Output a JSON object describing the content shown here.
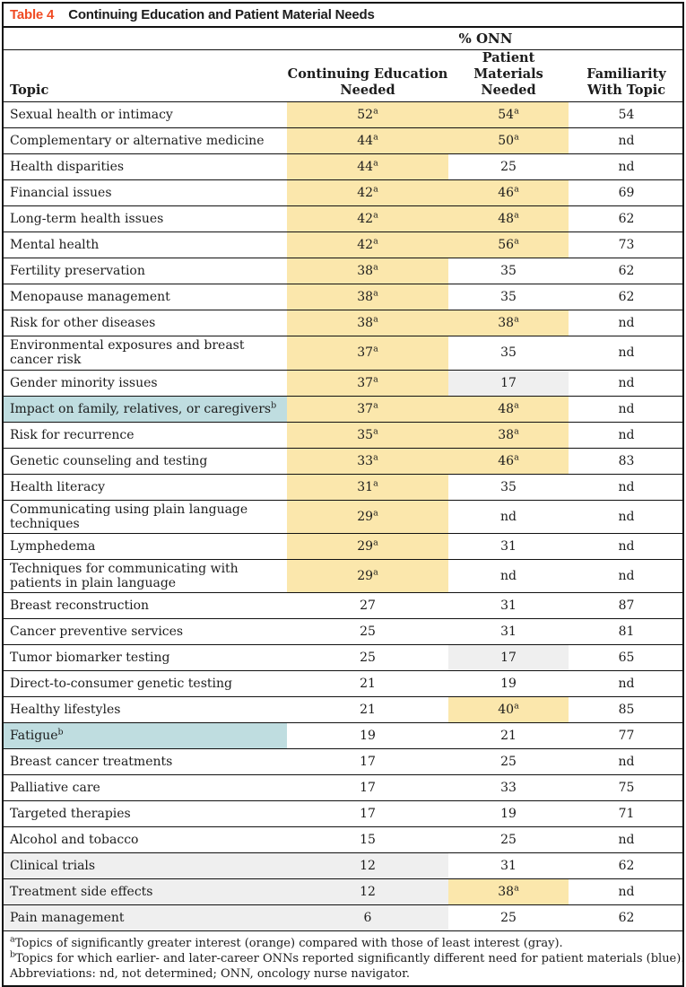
{
  "table": {
    "label": "Table 4",
    "title": "Continuing Education and Patient Material Needs",
    "group_header": "% ONN",
    "columns": [
      "Topic",
      "Continuing Education Needed",
      "Patient Materials Needed",
      "Familiarity With Topic"
    ],
    "colors": {
      "highlight_orange": "#fbe7ac",
      "highlight_gray": "#efefef",
      "highlight_blue": "#bfdde0",
      "table_label_red": "#f04b23",
      "border_black": "#111111"
    },
    "rows": [
      {
        "topic": "Sexual health or intimacy",
        "tsup": "",
        "tbg": "",
        "ce": "52",
        "cesup": "a",
        "cebg": "o",
        "pm": "54",
        "pmsup": "a",
        "pmbg": "o",
        "fam": "54"
      },
      {
        "topic": "Complementary or alternative medicine",
        "tsup": "",
        "tbg": "",
        "ce": "44",
        "cesup": "a",
        "cebg": "o",
        "pm": "50",
        "pmsup": "a",
        "pmbg": "o",
        "fam": "nd"
      },
      {
        "topic": "Health disparities",
        "tsup": "",
        "tbg": "",
        "ce": "44",
        "cesup": "a",
        "cebg": "o",
        "pm": "25",
        "pmsup": "",
        "pmbg": "",
        "fam": "nd"
      },
      {
        "topic": "Financial issues",
        "tsup": "",
        "tbg": "",
        "ce": "42",
        "cesup": "a",
        "cebg": "o",
        "pm": "46",
        "pmsup": "a",
        "pmbg": "o",
        "fam": "69"
      },
      {
        "topic": "Long-term health issues",
        "tsup": "",
        "tbg": "",
        "ce": "42",
        "cesup": "a",
        "cebg": "o",
        "pm": "48",
        "pmsup": "a",
        "pmbg": "o",
        "fam": "62"
      },
      {
        "topic": "Mental health",
        "tsup": "",
        "tbg": "",
        "ce": "42",
        "cesup": "a",
        "cebg": "o",
        "pm": "56",
        "pmsup": "a",
        "pmbg": "o",
        "fam": "73"
      },
      {
        "topic": "Fertility preservation",
        "tsup": "",
        "tbg": "",
        "ce": "38",
        "cesup": "a",
        "cebg": "o",
        "pm": "35",
        "pmsup": "",
        "pmbg": "",
        "fam": "62"
      },
      {
        "topic": "Menopause management",
        "tsup": "",
        "tbg": "",
        "ce": "38",
        "cesup": "a",
        "cebg": "o",
        "pm": "35",
        "pmsup": "",
        "pmbg": "",
        "fam": "62"
      },
      {
        "topic": "Risk for other diseases",
        "tsup": "",
        "tbg": "",
        "ce": "38",
        "cesup": "a",
        "cebg": "o",
        "pm": "38",
        "pmsup": "a",
        "pmbg": "o",
        "fam": "nd"
      },
      {
        "topic": "Environmental exposures and breast cancer risk",
        "tsup": "",
        "tbg": "",
        "ce": "37",
        "cesup": "a",
        "cebg": "o",
        "pm": "35",
        "pmsup": "",
        "pmbg": "",
        "fam": "nd"
      },
      {
        "topic": "Gender minority issues",
        "tsup": "",
        "tbg": "",
        "ce": "37",
        "cesup": "a",
        "cebg": "o",
        "pm": "17",
        "pmsup": "",
        "pmbg": "g",
        "fam": "nd"
      },
      {
        "topic": "Impact on family, relatives, or caregivers",
        "tsup": "b",
        "tbg": "b",
        "ce": "37",
        "cesup": "a",
        "cebg": "o",
        "pm": "48",
        "pmsup": "a",
        "pmbg": "o",
        "fam": "nd"
      },
      {
        "topic": "Risk for recurrence",
        "tsup": "",
        "tbg": "",
        "ce": "35",
        "cesup": "a",
        "cebg": "o",
        "pm": "38",
        "pmsup": "a",
        "pmbg": "o",
        "fam": "nd"
      },
      {
        "topic": "Genetic counseling and testing",
        "tsup": "",
        "tbg": "",
        "ce": "33",
        "cesup": "a",
        "cebg": "o",
        "pm": "46",
        "pmsup": "a",
        "pmbg": "o",
        "fam": "83"
      },
      {
        "topic": "Health literacy",
        "tsup": "",
        "tbg": "",
        "ce": "31",
        "cesup": "a",
        "cebg": "o",
        "pm": "35",
        "pmsup": "",
        "pmbg": "",
        "fam": "nd"
      },
      {
        "topic": "Communicating using plain language techniques",
        "tsup": "",
        "tbg": "",
        "ce": "29",
        "cesup": "a",
        "cebg": "o",
        "pm": "nd",
        "pmsup": "",
        "pmbg": "",
        "fam": "nd"
      },
      {
        "topic": "Lymphedema",
        "tsup": "",
        "tbg": "",
        "ce": "29",
        "cesup": "a",
        "cebg": "o",
        "pm": "31",
        "pmsup": "",
        "pmbg": "",
        "fam": "nd"
      },
      {
        "topic": "Techniques for communicating with patients in plain language",
        "tsup": "",
        "tbg": "",
        "ce": "29",
        "cesup": "a",
        "cebg": "o",
        "pm": "nd",
        "pmsup": "",
        "pmbg": "",
        "fam": "nd"
      },
      {
        "topic": "Breast reconstruction",
        "tsup": "",
        "tbg": "",
        "ce": "27",
        "cesup": "",
        "cebg": "",
        "pm": "31",
        "pmsup": "",
        "pmbg": "",
        "fam": "87"
      },
      {
        "topic": "Cancer preventive services",
        "tsup": "",
        "tbg": "",
        "ce": "25",
        "cesup": "",
        "cebg": "",
        "pm": "31",
        "pmsup": "",
        "pmbg": "",
        "fam": "81"
      },
      {
        "topic": "Tumor biomarker testing",
        "tsup": "",
        "tbg": "",
        "ce": "25",
        "cesup": "",
        "cebg": "",
        "pm": "17",
        "pmsup": "",
        "pmbg": "g",
        "fam": "65"
      },
      {
        "topic": "Direct-to-consumer genetic testing",
        "tsup": "",
        "tbg": "",
        "ce": "21",
        "cesup": "",
        "cebg": "",
        "pm": "19",
        "pmsup": "",
        "pmbg": "",
        "fam": "nd"
      },
      {
        "topic": "Healthy lifestyles",
        "tsup": "",
        "tbg": "",
        "ce": "21",
        "cesup": "",
        "cebg": "",
        "pm": "40",
        "pmsup": "a",
        "pmbg": "o",
        "fam": "85"
      },
      {
        "topic": "Fatigue",
        "tsup": "b",
        "tbg": "b",
        "ce": "19",
        "cesup": "",
        "cebg": "",
        "pm": "21",
        "pmsup": "",
        "pmbg": "",
        "fam": "77"
      },
      {
        "topic": "Breast cancer treatments",
        "tsup": "",
        "tbg": "",
        "ce": "17",
        "cesup": "",
        "cebg": "",
        "pm": "25",
        "pmsup": "",
        "pmbg": "",
        "fam": "nd"
      },
      {
        "topic": "Palliative care",
        "tsup": "",
        "tbg": "",
        "ce": "17",
        "cesup": "",
        "cebg": "",
        "pm": "33",
        "pmsup": "",
        "pmbg": "",
        "fam": "75"
      },
      {
        "topic": "Targeted therapies",
        "tsup": "",
        "tbg": "",
        "ce": "17",
        "cesup": "",
        "cebg": "",
        "pm": "19",
        "pmsup": "",
        "pmbg": "",
        "fam": "71"
      },
      {
        "topic": "Alcohol and tobacco",
        "tsup": "",
        "tbg": "",
        "ce": "15",
        "cesup": "",
        "cebg": "",
        "pm": "25",
        "pmsup": "",
        "pmbg": "",
        "fam": "nd"
      },
      {
        "topic": "Clinical trials",
        "tsup": "",
        "tbg": "g",
        "ce": "12",
        "cesup": "",
        "cebg": "g",
        "pm": "31",
        "pmsup": "",
        "pmbg": "",
        "fam": "62"
      },
      {
        "topic": "Treatment side effects",
        "tsup": "",
        "tbg": "g",
        "ce": "12",
        "cesup": "",
        "cebg": "g",
        "pm": "38",
        "pmsup": "a",
        "pmbg": "o",
        "fam": "nd"
      },
      {
        "topic": "Pain management",
        "tsup": "",
        "tbg": "g",
        "ce": "6",
        "cesup": "",
        "cebg": "g",
        "pm": "25",
        "pmsup": "",
        "pmbg": "",
        "fam": "62"
      }
    ],
    "footnotes": [
      {
        "sup": "a",
        "text": "Topics of significantly greater interest (orange) compared with those of least interest (gray)."
      },
      {
        "sup": "b",
        "text": "Topics for which earlier- and later-career ONNs reported significantly different need for patient materials (blue)."
      },
      {
        "sup": "",
        "text": "Abbreviations: nd, not determined; ONN, oncology nurse navigator."
      }
    ]
  }
}
